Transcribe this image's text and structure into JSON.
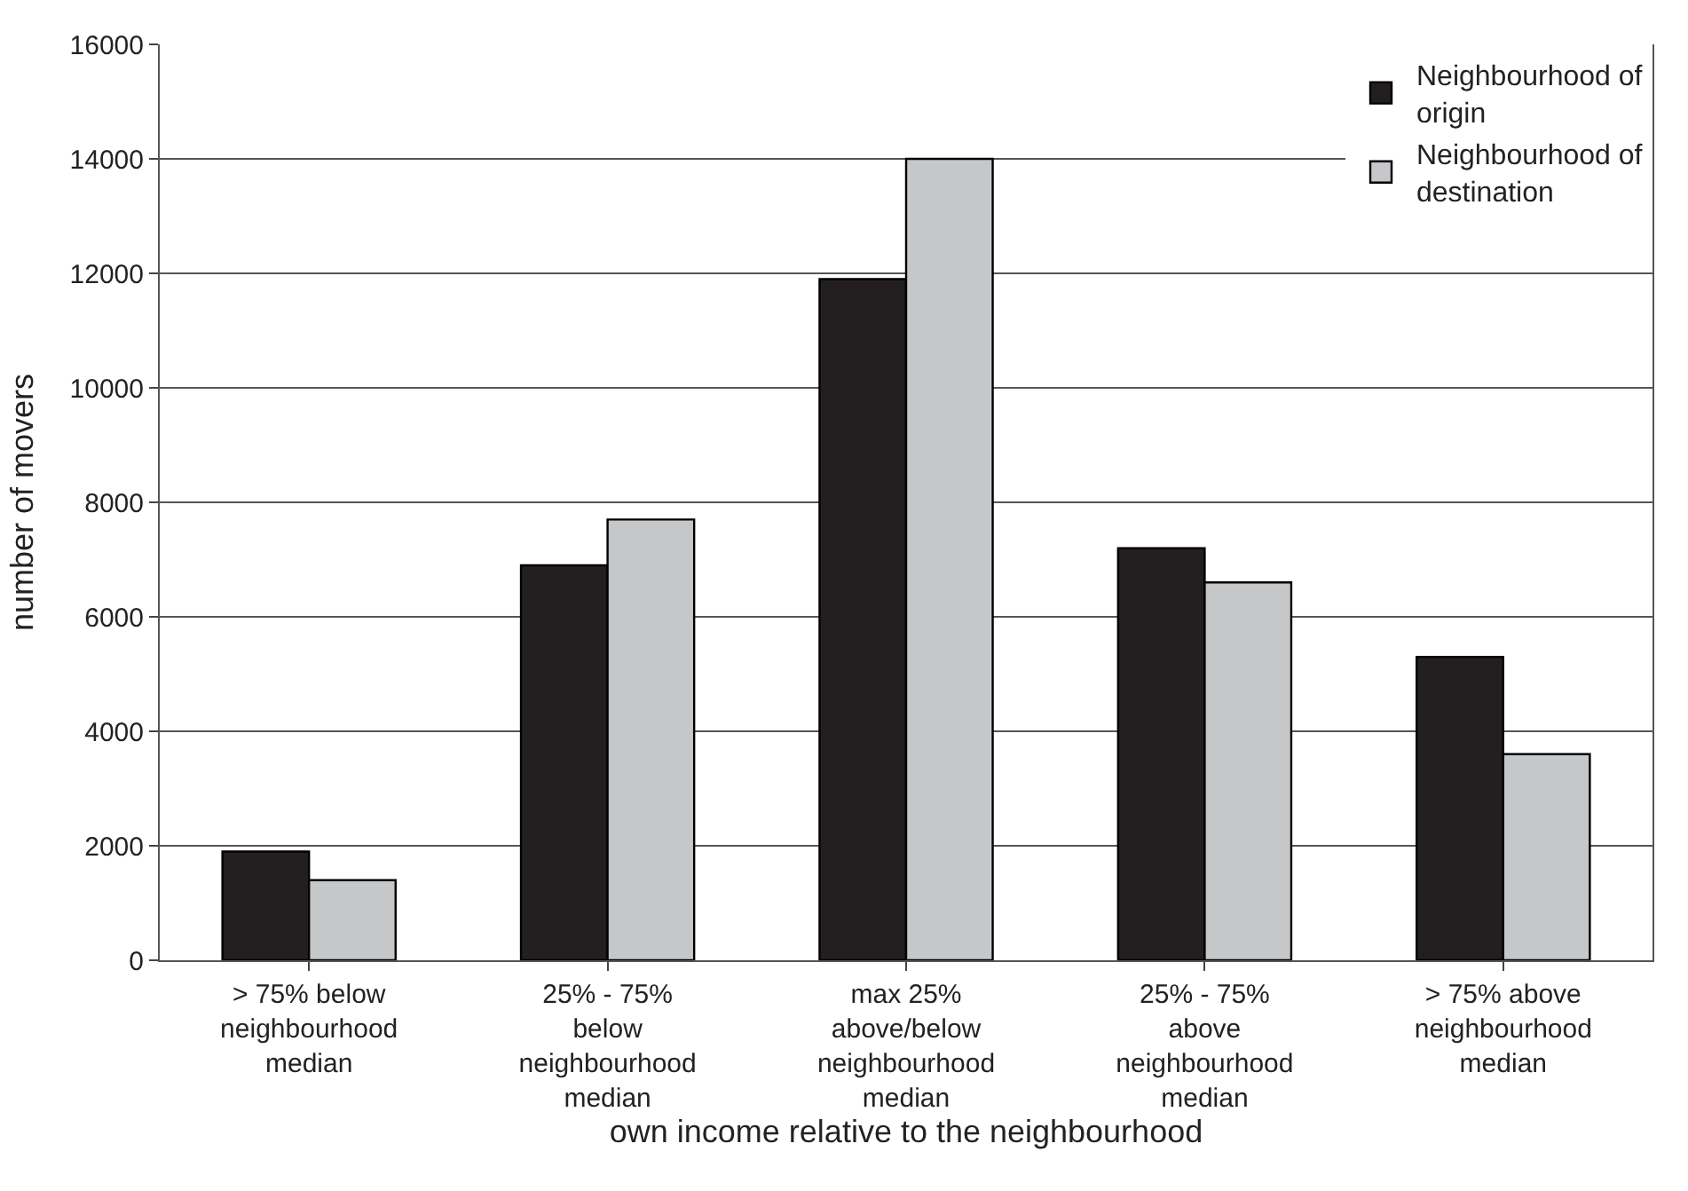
{
  "chart_data": {
    "type": "bar",
    "xlabel": "own income relative to the neighbourhood",
    "ylabel": "number of movers",
    "categories": [
      "> 75% below\nneighbourhood\nmedian",
      "25% - 75%\nbelow\nneighbourhood\nmedian",
      "max 25%\nabove/below\nneighbourhood\nmedian",
      "25% - 75%\nabove\nneighbourhood\nmedian",
      "> 75% above\nneighbourhood\nmedian"
    ],
    "series": [
      {
        "name": "Neighbourhood of\norigin",
        "color": "#231f20",
        "values": [
          1900,
          6900,
          11900,
          7200,
          5300
        ]
      },
      {
        "name": "Neighbourhood of\ndestination",
        "color": "#c6c7c9",
        "values": [
          1400,
          7700,
          14000,
          6600,
          3600
        ]
      }
    ],
    "ylim": [
      0,
      16000
    ],
    "yticks": [
      0,
      2000,
      4000,
      6000,
      8000,
      10000,
      12000,
      14000,
      16000
    ],
    "grid": "y",
    "legend": "top right"
  }
}
